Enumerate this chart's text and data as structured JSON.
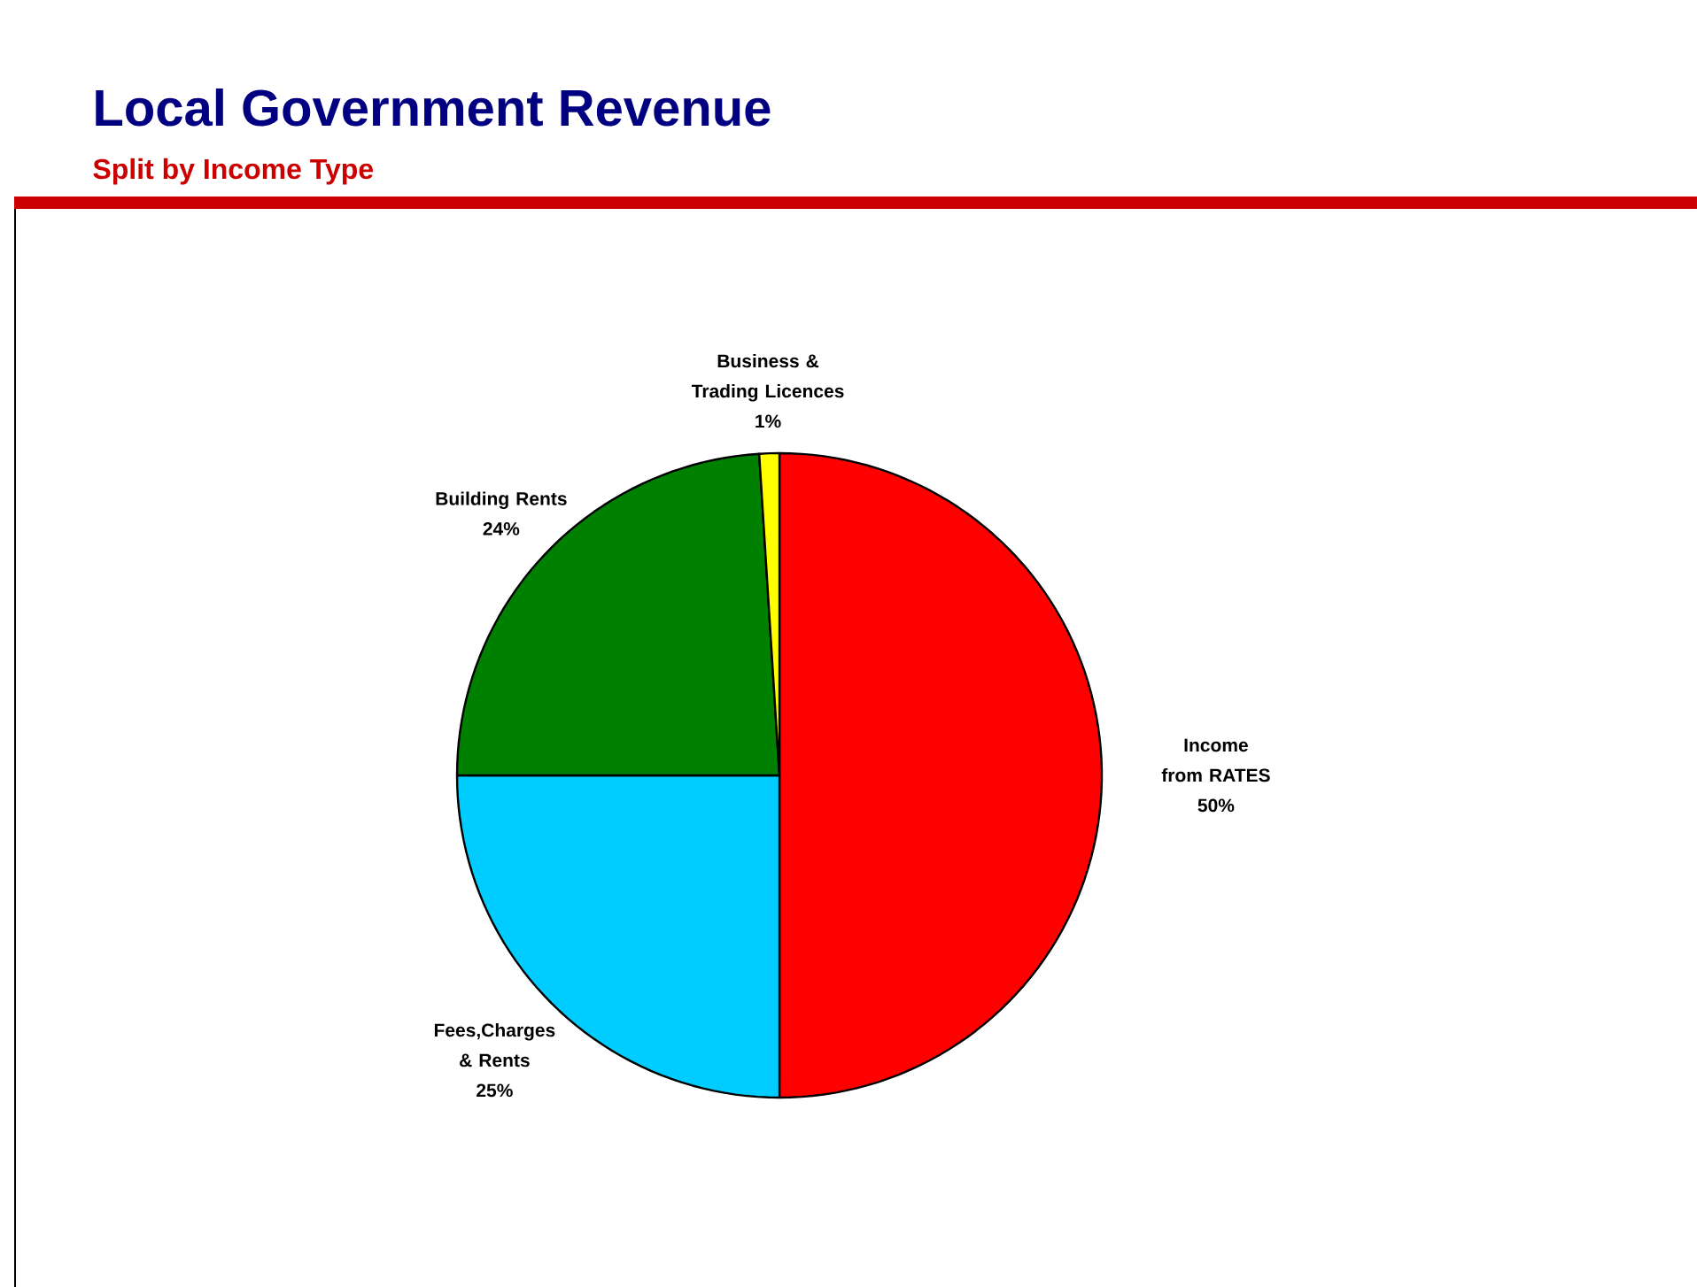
{
  "chart_data": {
    "type": "pie",
    "title": "Local Government Revenue",
    "subtitle": "Split by Income Type",
    "categories": [
      "Income from RATES",
      "Fees,Charges & Rents",
      "Building Rents",
      "Business & Trading Licences"
    ],
    "values": [
      50,
      25,
      24,
      1
    ],
    "value_labels": [
      "50%",
      "25%",
      "24%",
      "1%"
    ],
    "colors": [
      "#ff0000",
      "#00ccff",
      "#008000",
      "#ffff00"
    ]
  }
}
